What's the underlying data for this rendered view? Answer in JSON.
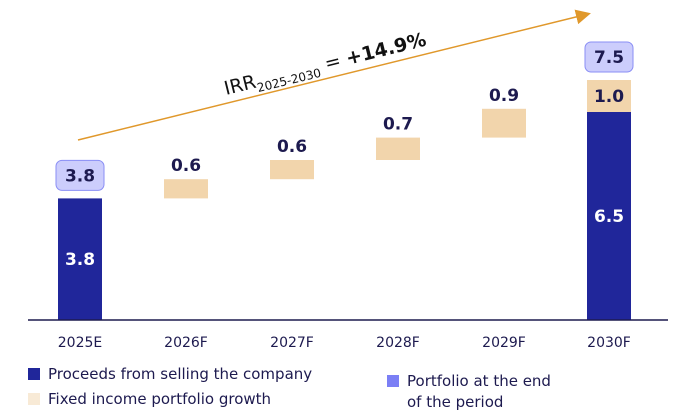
{
  "chart_data": {
    "type": "bar",
    "subtype": "waterfall",
    "categories": [
      "2025E",
      "2026F",
      "2027F",
      "2028F",
      "2029F",
      "2030F"
    ],
    "series": [
      {
        "name": "Proceeds from selling the company",
        "values": [
          3.8,
          null,
          null,
          null,
          null,
          6.5
        ],
        "color": "#20269a"
      },
      {
        "name": "Fixed income portfolio growth",
        "values": [
          null,
          0.6,
          0.6,
          0.7,
          0.9,
          1.0
        ],
        "color": "#f2d5ac"
      }
    ],
    "totals": {
      "name": "Portfolio at the end of the period",
      "values": [
        3.8,
        null,
        null,
        null,
        null,
        7.5
      ],
      "color": "#7b7ff5"
    },
    "labels": {
      "bar_2025": "3.8",
      "bar_2030": "6.5",
      "inc_2030": "1.0",
      "inc": [
        "0.6",
        "0.6",
        "0.7",
        "0.9"
      ],
      "total_2025": "3.8",
      "total_2030": "7.5"
    },
    "annotation": {
      "prefix": "IRR",
      "subscript": "2025-2030",
      "equals": " = ",
      "value": "+14.9%"
    },
    "legend": [
      "Proceeds from selling the company",
      "Fixed income portfolio growth",
      "Portfolio at the end",
      "of the period"
    ],
    "ylim": [
      0,
      9.5
    ]
  }
}
